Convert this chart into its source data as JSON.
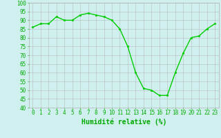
{
  "x": [
    0,
    1,
    2,
    3,
    4,
    5,
    6,
    7,
    8,
    9,
    10,
    11,
    12,
    13,
    14,
    15,
    16,
    17,
    18,
    19,
    20,
    21,
    22,
    23
  ],
  "y": [
    86,
    88,
    88,
    92,
    90,
    90,
    93,
    94,
    93,
    92,
    90,
    85,
    75,
    60,
    51,
    50,
    47,
    47,
    60,
    71,
    80,
    81,
    85,
    88
  ],
  "xlabel": "Humidité relative (%)",
  "ylim": [
    40,
    100
  ],
  "xlim": [
    -0.5,
    23.5
  ],
  "yticks": [
    40,
    45,
    50,
    55,
    60,
    65,
    70,
    75,
    80,
    85,
    90,
    95,
    100
  ],
  "xticks": [
    0,
    1,
    2,
    3,
    4,
    5,
    6,
    7,
    8,
    9,
    10,
    11,
    12,
    13,
    14,
    15,
    16,
    17,
    18,
    19,
    20,
    21,
    22,
    23
  ],
  "line_color": "#00cc00",
  "marker_color": "#00cc00",
  "bg_color": "#cff0ee",
  "grid_color": "#b0b0b0",
  "tick_label_color": "#00aa00",
  "xlabel_color": "#00aa00",
  "font_size": 5.5,
  "xlabel_fontsize": 7,
  "linewidth": 1.0,
  "markersize": 2.0
}
